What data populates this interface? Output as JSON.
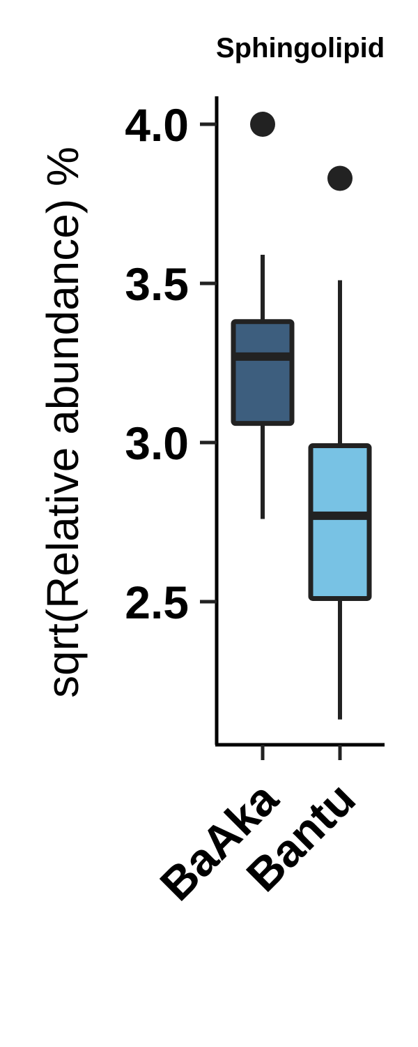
{
  "chart_data": {
    "type": "boxplot",
    "title": "Sphingolipid",
    "ylabel": "sqrt(Relative abundance) %",
    "xlabel": "",
    "ylim": [
      2.07,
      4.08
    ],
    "yticks": [
      "2.5",
      "3.0",
      "3.5",
      "4.0"
    ],
    "grid": false,
    "legend": "none",
    "categories": [
      "BaAka",
      "Bantu"
    ],
    "series": [
      {
        "category": "BaAka",
        "color": "#3d5e7e",
        "whisker_low": 2.76,
        "q1": 3.06,
        "median": 3.27,
        "q3": 3.38,
        "whisker_high": 3.59,
        "outliers": [
          4.0
        ]
      },
      {
        "category": "Bantu",
        "color": "#78c2e4",
        "whisker_low": 2.13,
        "q1": 2.51,
        "median": 2.77,
        "q3": 2.99,
        "whisker_high": 3.51,
        "outliers": [
          3.83
        ]
      }
    ]
  }
}
